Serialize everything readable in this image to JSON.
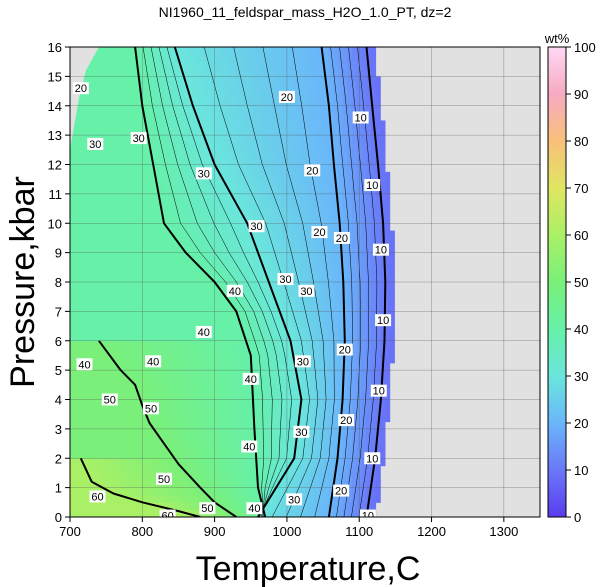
{
  "chart_data": {
    "type": "heatmap",
    "title": "NI1960_11_feldspar_mass_H2O_1.0_PT, dz=2",
    "xlabel": "Temperature,C",
    "ylabel": "Pressure,kbar",
    "xlim": [
      700,
      1350
    ],
    "ylim": [
      0,
      16
    ],
    "x_ticks": [
      "700",
      "800",
      "900",
      "1000",
      "1100",
      "1200",
      "1300"
    ],
    "y_ticks": [
      "0",
      "1",
      "2",
      "3",
      "4",
      "5",
      "6",
      "7",
      "8",
      "9",
      "10",
      "11",
      "12",
      "13",
      "14",
      "15",
      "16"
    ],
    "grid": true,
    "colorbar": {
      "label": "wt%",
      "range": [
        0,
        100
      ],
      "ticks": [
        "0",
        "10",
        "20",
        "30",
        "40",
        "50",
        "60",
        "70",
        "80",
        "90",
        "100"
      ],
      "stops": [
        {
          "value": 0,
          "color": "#5a3cf0"
        },
        {
          "value": 10,
          "color": "#6a78f8"
        },
        {
          "value": 20,
          "color": "#6ab6fa"
        },
        {
          "value": 30,
          "color": "#6ae6dc"
        },
        {
          "value": 40,
          "color": "#66f0a8"
        },
        {
          "value": 50,
          "color": "#7af07a"
        },
        {
          "value": 60,
          "color": "#aaf066"
        },
        {
          "value": 70,
          "color": "#e0e662"
        },
        {
          "value": 80,
          "color": "#f8c07a"
        },
        {
          "value": 90,
          "color": "#f7aac2"
        },
        {
          "value": 100,
          "color": "#ffd8f4"
        }
      ]
    },
    "no_data_color": "#e1e1e1",
    "major_contours": [
      {
        "level": "10",
        "points": [
          [
            1110,
            16
          ],
          [
            1118,
            14
          ],
          [
            1126,
            12
          ],
          [
            1133,
            10
          ],
          [
            1136,
            8
          ],
          [
            1135,
            6
          ],
          [
            1130,
            4
          ],
          [
            1122,
            2
          ],
          [
            1110,
            0
          ]
        ]
      },
      {
        "level": "20",
        "points": [
          [
            1048,
            16
          ],
          [
            1058,
            14
          ],
          [
            1065,
            12
          ],
          [
            1073,
            10
          ],
          [
            1078,
            8
          ],
          [
            1080,
            6
          ],
          [
            1077,
            4
          ],
          [
            1070,
            2
          ],
          [
            1058,
            0
          ]
        ]
      },
      {
        "level": "30",
        "points": [
          [
            845,
            16
          ],
          [
            870,
            14
          ],
          [
            900,
            12
          ],
          [
            945,
            10
          ],
          [
            975,
            8
          ],
          [
            1005,
            6
          ],
          [
            1020,
            4
          ],
          [
            1010,
            2
          ],
          [
            960,
            0
          ]
        ]
      },
      {
        "level": "40",
        "points": [
          [
            790,
            16
          ],
          [
            800,
            14
          ],
          [
            815,
            12
          ],
          [
            830,
            10
          ],
          [
            860,
            9
          ],
          [
            900,
            8
          ],
          [
            930,
            7
          ],
          [
            950,
            5.5
          ],
          [
            955,
            3
          ],
          [
            960,
            1
          ],
          [
            970,
            0
          ]
        ]
      },
      {
        "level": "50",
        "points": [
          [
            740,
            6
          ],
          [
            770,
            5
          ],
          [
            790,
            4.5
          ],
          [
            800,
            3.8
          ],
          [
            810,
            3.2
          ],
          [
            830,
            2.5
          ],
          [
            850,
            1.8
          ],
          [
            880,
            1
          ],
          [
            900,
            0.5
          ],
          [
            930,
            0
          ]
        ]
      },
      {
        "level": "60",
        "points": [
          [
            715,
            2
          ],
          [
            730,
            1.2
          ],
          [
            760,
            0.8
          ],
          [
            800,
            0.5
          ],
          [
            850,
            0.2
          ],
          [
            880,
            0
          ]
        ]
      }
    ],
    "contour_labels": [
      {
        "text": "20",
        "x": 715,
        "y": 14.6
      },
      {
        "text": "30",
        "x": 735,
        "y": 12.7
      },
      {
        "text": "30",
        "x": 795,
        "y": 12.9
      },
      {
        "text": "30",
        "x": 885,
        "y": 11.7
      },
      {
        "text": "30",
        "x": 958,
        "y": 9.9
      },
      {
        "text": "30",
        "x": 998,
        "y": 8.1
      },
      {
        "text": "30",
        "x": 1027,
        "y": 7.7
      },
      {
        "text": "30",
        "x": 1022,
        "y": 5.3
      },
      {
        "text": "30",
        "x": 1020,
        "y": 2.9
      },
      {
        "text": "30",
        "x": 1010,
        "y": 0.6
      },
      {
        "text": "20",
        "x": 1000,
        "y": 14.3
      },
      {
        "text": "20",
        "x": 1035,
        "y": 11.8
      },
      {
        "text": "20",
        "x": 1045,
        "y": 9.7
      },
      {
        "text": "20",
        "x": 1076,
        "y": 9.5
      },
      {
        "text": "20",
        "x": 1080,
        "y": 5.7
      },
      {
        "text": "20",
        "x": 1082,
        "y": 3.3
      },
      {
        "text": "20",
        "x": 1075,
        "y": 0.9
      },
      {
        "text": "10",
        "x": 1102,
        "y": 13.6
      },
      {
        "text": "10",
        "x": 1118,
        "y": 11.3
      },
      {
        "text": "10",
        "x": 1130,
        "y": 9.1
      },
      {
        "text": "10",
        "x": 1133,
        "y": 6.7
      },
      {
        "text": "10",
        "x": 1127,
        "y": 4.3
      },
      {
        "text": "10",
        "x": 1118,
        "y": 2.0
      },
      {
        "text": "10",
        "x": 1112,
        "y": 0.05
      },
      {
        "text": "40",
        "x": 928,
        "y": 7.7
      },
      {
        "text": "40",
        "x": 885,
        "y": 6.3
      },
      {
        "text": "40",
        "x": 815,
        "y": 5.3
      },
      {
        "text": "40",
        "x": 720,
        "y": 5.2
      },
      {
        "text": "40",
        "x": 950,
        "y": 4.7
      },
      {
        "text": "40",
        "x": 948,
        "y": 2.4
      },
      {
        "text": "40",
        "x": 955,
        "y": 0.3
      },
      {
        "text": "50",
        "x": 755,
        "y": 4.0
      },
      {
        "text": "50",
        "x": 812,
        "y": 3.7
      },
      {
        "text": "50",
        "x": 830,
        "y": 1.3
      },
      {
        "text": "50",
        "x": 890,
        "y": 0.3
      },
      {
        "text": "60",
        "x": 738,
        "y": 0.7
      },
      {
        "text": "60",
        "x": 835,
        "y": 0.05
      }
    ]
  }
}
